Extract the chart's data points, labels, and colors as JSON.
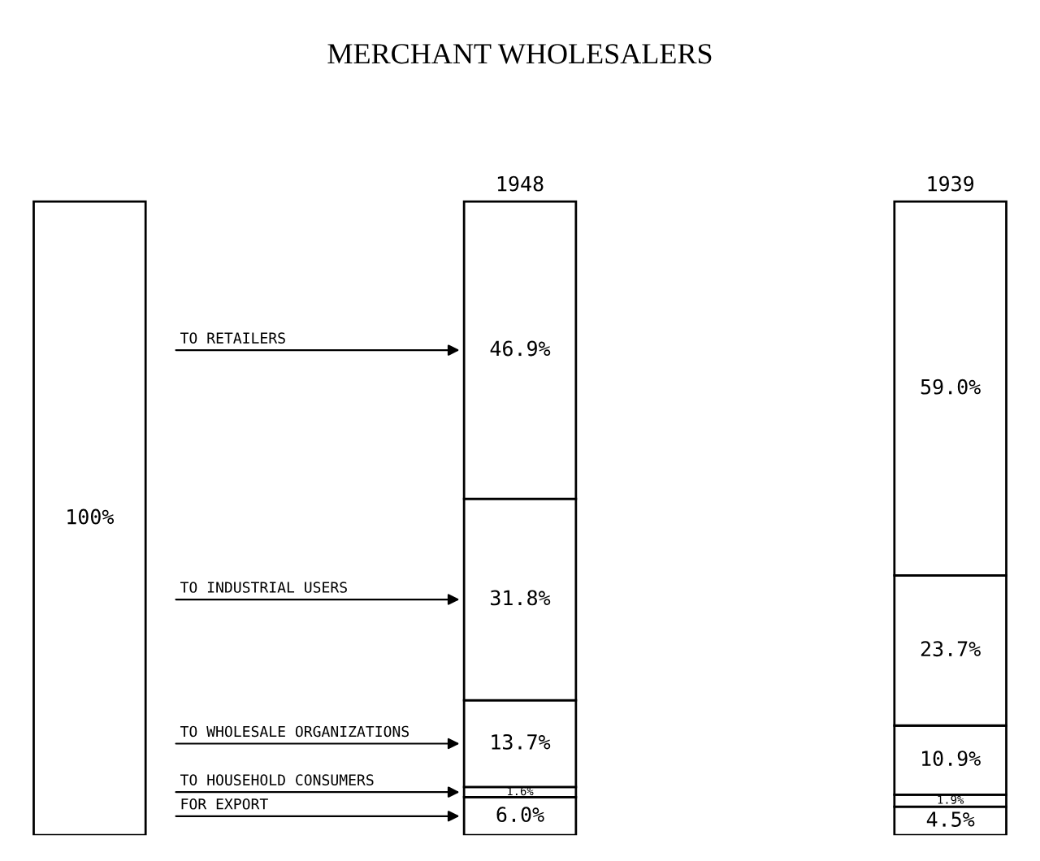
{
  "chart_data": {
    "type": "bar",
    "stacked": true,
    "title": "MERCHANT WHOLESALERS",
    "categories": [
      null,
      "1948",
      "1939"
    ],
    "series": [
      {
        "color": "#ffffff",
        "values": [
          100,
          null,
          null
        ],
        "value_labels": [
          "100%",
          null,
          null
        ]
      },
      {
        "name": "FOR EXPORT",
        "color": "#ffffff",
        "values": [
          null,
          6.0,
          4.5
        ],
        "value_labels": [
          null,
          "6.0%",
          "4.5%"
        ]
      },
      {
        "name": "TO HOUSEHOLD CONSUMERS",
        "color": "#ffffff",
        "values": [
          null,
          1.6,
          1.9
        ],
        "value_labels": [
          null,
          "1.6%",
          "1.9%"
        ]
      },
      {
        "name": "TO WHOLESALE ORGANIZATIONS",
        "color": "#ffffff",
        "values": [
          null,
          13.7,
          10.9
        ],
        "value_labels": [
          null,
          "13.7%",
          "10.9%"
        ]
      },
      {
        "name": "TO INDUSTRIAL USERS",
        "color": "#ffffff",
        "values": [
          null,
          31.8,
          23.7
        ],
        "value_labels": [
          null,
          "31.8%",
          "23.7%"
        ]
      },
      {
        "name": "TO RETAILERS",
        "color": "#ffffff",
        "values": [
          null,
          46.9,
          59.0
        ],
        "value_labels": [
          null,
          "46.9%",
          "59.0%"
        ]
      }
    ],
    "legend": false
  }
}
